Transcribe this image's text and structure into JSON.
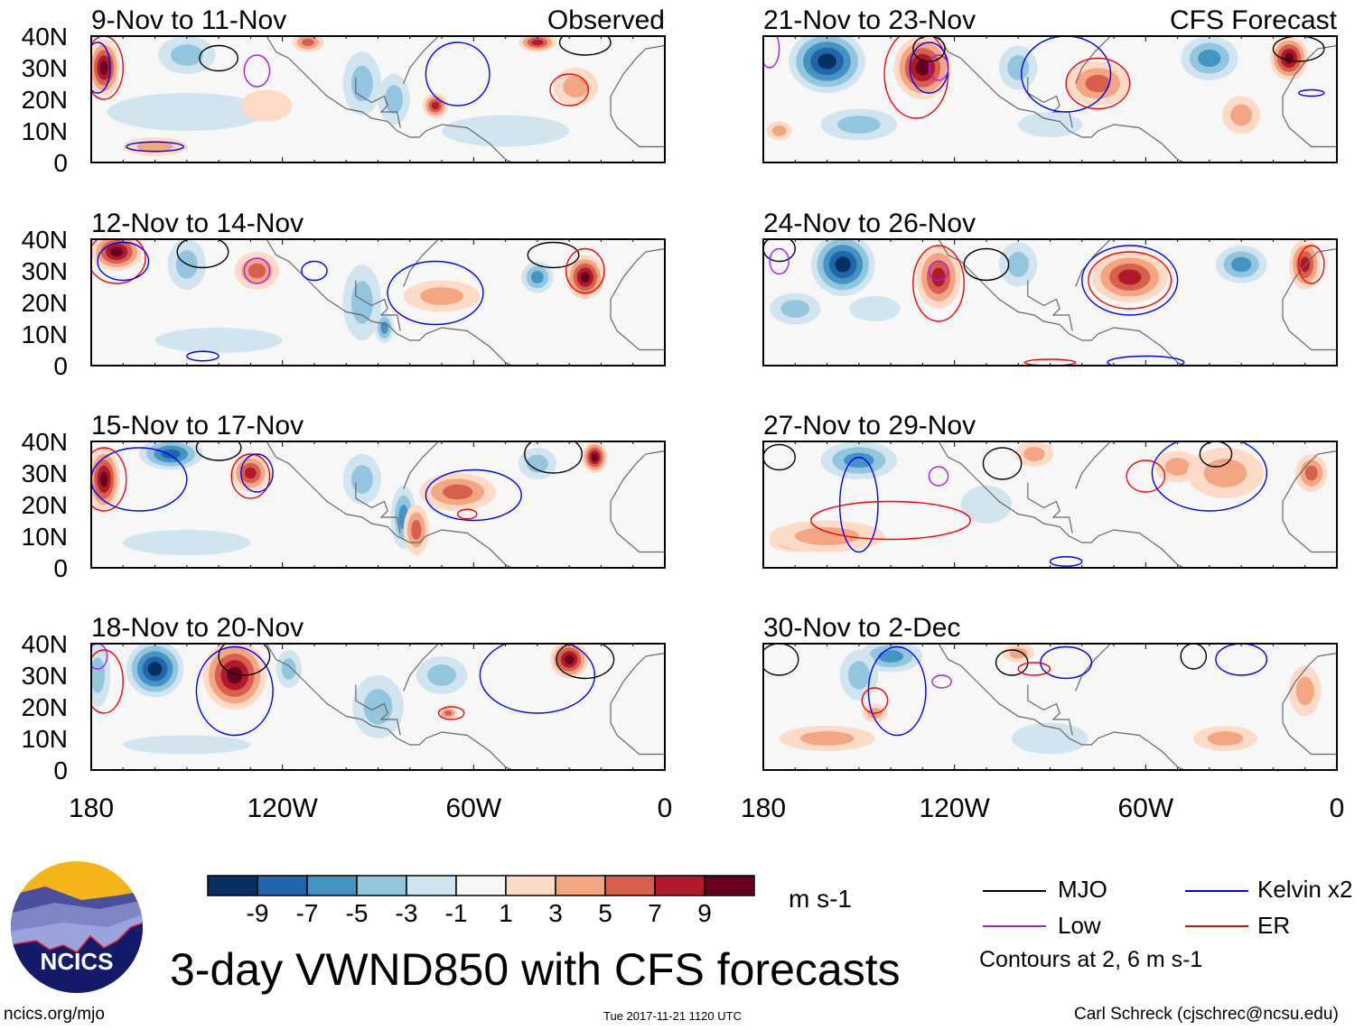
{
  "chart_data": {
    "type": "heatmap",
    "title": "3-day VWND850 with CFS forecasts",
    "units": "m s-1",
    "colorbar": {
      "levels": [
        -9,
        -7,
        -5,
        -3,
        -1,
        1,
        3,
        5,
        7,
        9
      ],
      "tick_labels": [
        "-9",
        "-7",
        "-5",
        "-3",
        "-1",
        "1",
        "3",
        "5",
        "7",
        "9"
      ],
      "colors": [
        "#053061",
        "#2166ac",
        "#4393c3",
        "#92c5de",
        "#d1e5f0",
        "#f7f7f7",
        "#fddbc7",
        "#f4a582",
        "#d6604d",
        "#b2182b",
        "#67001f"
      ]
    },
    "x_ticks": [
      {
        "lon": 180,
        "label": "180"
      },
      {
        "lon": 120,
        "label": "120W"
      },
      {
        "lon": 60,
        "label": "60W"
      },
      {
        "lon": 0,
        "label": "0"
      }
    ],
    "y_ticks": [
      {
        "lat": 40,
        "label": "40N"
      },
      {
        "lat": 30,
        "label": "30N"
      },
      {
        "lat": 20,
        "label": "20N"
      },
      {
        "lat": 10,
        "label": "10N"
      },
      {
        "lat": 0,
        "label": "0"
      }
    ],
    "xlim_lon_west": [
      180,
      0
    ],
    "ylim_lat": [
      0,
      40
    ],
    "column_labels": {
      "left": "Observed",
      "right": "CFS Forecast"
    },
    "contour_note": "Contours at 2, 6 m s-1",
    "contour_legend": [
      {
        "name": "MJO",
        "color": "#000000"
      },
      {
        "name": "Low",
        "color": "#a020f0"
      },
      {
        "name": "Kelvin x2",
        "color": "#0000ff"
      },
      {
        "name": "ER",
        "color": "#ff0000"
      }
    ],
    "panels": [
      {
        "title": "9-Nov to 11-Nov",
        "column": "left",
        "row": 0,
        "anomalies": [
          [
            176,
            30,
            5,
            9,
            9
          ],
          [
            150,
            34,
            9,
            6,
            -4
          ],
          [
            112,
            38,
            5,
            3,
            6
          ],
          [
            95,
            25,
            6,
            10,
            -4
          ],
          [
            85,
            20,
            5,
            8,
            -3
          ],
          [
            72,
            18,
            4,
            4,
            7
          ],
          [
            28,
            24,
            7,
            6,
            4
          ],
          [
            150,
            16,
            25,
            6,
            -2
          ],
          [
            50,
            10,
            20,
            5,
            -2
          ],
          [
            160,
            5,
            10,
            3,
            3
          ],
          [
            125,
            18,
            8,
            5,
            2
          ],
          [
            40,
            38,
            6,
            3,
            7
          ]
        ],
        "contours": [
          [
            "ER",
            176,
            30,
            6,
            10
          ],
          [
            "Kelvin",
            178,
            30,
            4,
            8
          ],
          [
            "Low",
            128,
            29,
            4,
            5
          ],
          [
            "MJO",
            140,
            33,
            6,
            4
          ],
          [
            "Kelvin",
            65,
            28,
            10,
            10
          ],
          [
            "ER",
            30,
            23,
            6,
            5
          ],
          [
            "Kelvin",
            160,
            5,
            9,
            1.5
          ],
          [
            "MJO",
            25,
            38,
            8,
            4
          ]
        ]
      },
      {
        "title": "12-Nov to 14-Nov",
        "column": "left",
        "row": 1,
        "anomalies": [
          [
            172,
            36,
            8,
            6,
            9
          ],
          [
            150,
            32,
            6,
            8,
            -4
          ],
          [
            128,
            30,
            7,
            6,
            5
          ],
          [
            95,
            20,
            6,
            12,
            -4
          ],
          [
            88,
            12,
            3,
            5,
            -5
          ],
          [
            40,
            28,
            5,
            5,
            -6
          ],
          [
            25,
            28,
            6,
            7,
            9
          ],
          [
            70,
            22,
            12,
            5,
            3
          ],
          [
            140,
            8,
            20,
            4,
            -2
          ]
        ],
        "contours": [
          [
            "ER",
            172,
            34,
            9,
            8
          ],
          [
            "Kelvin",
            170,
            33,
            8,
            6
          ],
          [
            "Low",
            128,
            30,
            4,
            4
          ],
          [
            "MJO",
            145,
            36,
            8,
            5
          ],
          [
            "MJO",
            35,
            35,
            8,
            4
          ],
          [
            "ER",
            25,
            30,
            6,
            7
          ],
          [
            "Kelvin",
            72,
            23,
            15,
            10
          ],
          [
            "Kelvin",
            145,
            3,
            5,
            1.5
          ],
          [
            "Kelvin",
            110,
            30,
            4,
            3
          ]
        ]
      },
      {
        "title": "15-Nov to 17-Nov",
        "column": "left",
        "row": 2,
        "anomalies": [
          [
            176,
            28,
            5,
            10,
            9
          ],
          [
            155,
            36,
            10,
            5,
            -7
          ],
          [
            130,
            30,
            6,
            6,
            8
          ],
          [
            95,
            28,
            6,
            8,
            -4
          ],
          [
            82,
            16,
            4,
            10,
            -5
          ],
          [
            65,
            24,
            12,
            6,
            5
          ],
          [
            78,
            12,
            4,
            8,
            5
          ],
          [
            22,
            35,
            4,
            5,
            9
          ],
          [
            40,
            33,
            6,
            5,
            -4
          ],
          [
            150,
            8,
            20,
            4,
            -2
          ]
        ],
        "contours": [
          [
            "ER",
            176,
            28,
            7,
            10
          ],
          [
            "Kelvin",
            165,
            28,
            15,
            10
          ],
          [
            "ER",
            130,
            29,
            6,
            7
          ],
          [
            "Kelvin",
            128,
            30,
            5,
            6
          ],
          [
            "MJO",
            140,
            38,
            7,
            4
          ],
          [
            "Kelvin",
            60,
            23,
            15,
            8
          ],
          [
            "MJO",
            35,
            36,
            9,
            6
          ],
          [
            "ER",
            62,
            17,
            3,
            1.5
          ]
        ]
      },
      {
        "title": "18-Nov to 20-Nov",
        "column": "left",
        "row": 3,
        "anomalies": [
          [
            160,
            32,
            9,
            9,
            -9
          ],
          [
            178,
            30,
            4,
            10,
            -3
          ],
          [
            135,
            30,
            10,
            11,
            9
          ],
          [
            118,
            32,
            4,
            6,
            -3
          ],
          [
            90,
            20,
            8,
            10,
            -3
          ],
          [
            70,
            30,
            8,
            6,
            -4
          ],
          [
            30,
            35,
            6,
            6,
            9
          ],
          [
            68,
            18,
            3,
            2,
            5
          ],
          [
            150,
            8,
            20,
            3,
            -2
          ]
        ],
        "contours": [
          [
            "ER",
            176,
            28,
            6,
            10
          ],
          [
            "Kelvin",
            135,
            25,
            12,
            14
          ],
          [
            "MJO",
            132,
            36,
            8,
            6
          ],
          [
            "Kelvin",
            40,
            30,
            18,
            12
          ],
          [
            "MJO",
            25,
            35,
            9,
            6
          ],
          [
            "ER",
            67,
            18,
            4,
            2
          ],
          [
            "Low",
            178,
            36,
            3,
            4
          ]
        ]
      },
      {
        "title": "21-Nov to 23-Nov",
        "column": "right",
        "row": 0,
        "anomalies": [
          [
            160,
            32,
            12,
            10,
            -9
          ],
          [
            130,
            30,
            9,
            10,
            9
          ],
          [
            100,
            30,
            6,
            7,
            -4
          ],
          [
            75,
            25,
            10,
            7,
            5
          ],
          [
            40,
            33,
            9,
            7,
            -6
          ],
          [
            15,
            33,
            6,
            7,
            9
          ],
          [
            150,
            12,
            12,
            5,
            -3
          ],
          [
            175,
            10,
            4,
            3,
            4
          ],
          [
            30,
            15,
            6,
            6,
            3
          ],
          [
            90,
            12,
            10,
            4,
            -2
          ]
        ],
        "contours": [
          [
            "ER",
            132,
            28,
            10,
            14
          ],
          [
            "Kelvin",
            128,
            30,
            6,
            8
          ],
          [
            "Low",
            125,
            30,
            3,
            4
          ],
          [
            "MJO",
            128,
            36,
            5,
            4
          ],
          [
            "Kelvin",
            85,
            28,
            14,
            12
          ],
          [
            "ER",
            75,
            25,
            10,
            8
          ],
          [
            "MJO",
            12,
            36,
            8,
            4
          ],
          [
            "Low",
            178,
            36,
            3,
            6
          ],
          [
            "Kelvin",
            8,
            22,
            4,
            1
          ]
        ]
      },
      {
        "title": "24-Nov to 26-Nov",
        "column": "right",
        "row": 1,
        "anomalies": [
          [
            155,
            32,
            10,
            10,
            -9
          ],
          [
            125,
            28,
            7,
            10,
            7
          ],
          [
            100,
            32,
            6,
            7,
            -4
          ],
          [
            65,
            28,
            12,
            8,
            8
          ],
          [
            30,
            32,
            8,
            6,
            -5
          ],
          [
            10,
            32,
            5,
            8,
            8
          ],
          [
            170,
            18,
            8,
            5,
            -3
          ],
          [
            145,
            18,
            8,
            4,
            -2
          ]
        ],
        "contours": [
          [
            "ER",
            125,
            26,
            8,
            12
          ],
          [
            "Low",
            125,
            30,
            3,
            3
          ],
          [
            "MJO",
            110,
            32,
            7,
            5
          ],
          [
            "ER",
            65,
            27,
            13,
            9
          ],
          [
            "Kelvin",
            65,
            27,
            15,
            11
          ],
          [
            "Kelvin",
            60,
            1,
            12,
            2
          ],
          [
            "ER",
            90,
            1,
            8,
            1
          ],
          [
            "MJO",
            175,
            37,
            5,
            4
          ],
          [
            "Low",
            175,
            33,
            3,
            4
          ],
          [
            "ER",
            8,
            32,
            4,
            6
          ]
        ]
      },
      {
        "title": "27-Nov to 29-Nov",
        "column": "right",
        "row": 2,
        "anomalies": [
          [
            150,
            34,
            12,
            6,
            -5
          ],
          [
            95,
            36,
            6,
            4,
            4
          ],
          [
            50,
            32,
            7,
            5,
            3
          ],
          [
            35,
            30,
            12,
            8,
            4
          ],
          [
            170,
            8,
            8,
            3,
            6
          ],
          [
            160,
            10,
            18,
            5,
            3
          ],
          [
            8,
            30,
            5,
            6,
            5
          ],
          [
            110,
            20,
            8,
            6,
            -2
          ]
        ],
        "contours": [
          [
            "MJO",
            175,
            35,
            5,
            4
          ],
          [
            "Kelvin",
            150,
            20,
            6,
            15
          ],
          [
            "ER",
            140,
            15,
            25,
            6
          ],
          [
            "Low",
            125,
            29,
            3,
            3
          ],
          [
            "MJO",
            105,
            33,
            6,
            5
          ],
          [
            "ER",
            60,
            29,
            6,
            5
          ],
          [
            "Kelvin",
            40,
            30,
            18,
            12
          ],
          [
            "MJO",
            38,
            36,
            5,
            4
          ],
          [
            "Kelvin",
            85,
            2,
            5,
            1.5
          ]
        ]
      },
      {
        "title": "30-Nov to 2-Dec",
        "column": "right",
        "row": 3,
        "anomalies": [
          [
            140,
            36,
            10,
            5,
            -5
          ],
          [
            150,
            30,
            6,
            8,
            -3
          ],
          [
            100,
            37,
            5,
            3,
            4
          ],
          [
            10,
            25,
            5,
            8,
            4
          ],
          [
            145,
            18,
            4,
            3,
            4
          ],
          [
            160,
            10,
            15,
            4,
            3
          ],
          [
            90,
            10,
            12,
            5,
            -2
          ],
          [
            35,
            10,
            10,
            4,
            3
          ]
        ],
        "contours": [
          [
            "MJO",
            175,
            35,
            6,
            5
          ],
          [
            "Kelvin",
            138,
            25,
            9,
            14
          ],
          [
            "ER",
            145,
            22,
            4,
            4
          ],
          [
            "Low",
            124,
            28,
            3,
            2
          ],
          [
            "MJO",
            102,
            34,
            5,
            4
          ],
          [
            "ER",
            95,
            32,
            5,
            2
          ],
          [
            "Kelvin",
            85,
            34,
            8,
            5
          ],
          [
            "MJO",
            45,
            36,
            4,
            4
          ],
          [
            "Kelvin",
            30,
            35,
            8,
            5
          ]
        ]
      }
    ]
  },
  "legend": {
    "units_label": "m s-1",
    "mjo": "MJO",
    "low": "Low",
    "kelvin": "Kelvin x2",
    "er": "ER",
    "contour_note": "Contours at 2, 6 m s-1"
  },
  "footer": {
    "title": "3-day VWND850 with CFS forecasts",
    "url": "ncics.org/mjo",
    "timestamp": "Tue 2017-11-21 1120 UTC",
    "credit": "Carl Schreck (cjschrec@ncsu.edu)",
    "logo_text": "NCICS"
  }
}
